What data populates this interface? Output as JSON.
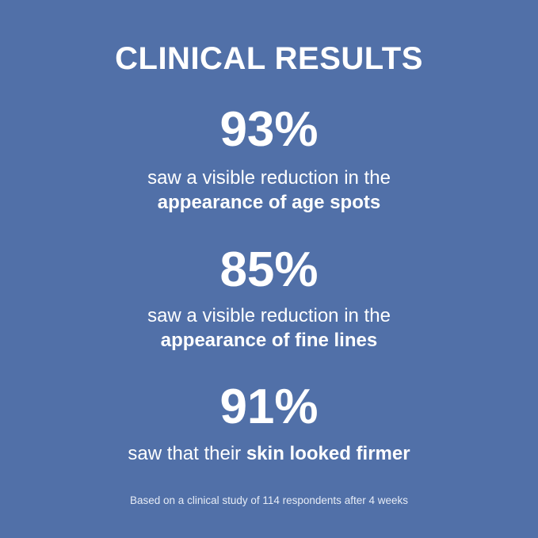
{
  "title": "CLINICAL RESULTS",
  "colors": {
    "background": "#5170a8",
    "text": "#ffffff"
  },
  "stats": [
    {
      "value": "93%",
      "line1": "saw a visible reduction in the",
      "line2_bold": "appearance of age spots"
    },
    {
      "value": "85%",
      "line1": "saw a visible reduction in the",
      "line2_bold": "appearance of fine lines"
    },
    {
      "value": "91%",
      "line_prefix": "saw that their ",
      "line_bold": "skin looked firmer"
    }
  ],
  "footnote": "Based on a clinical study of 114 respondents after 4 weeks"
}
